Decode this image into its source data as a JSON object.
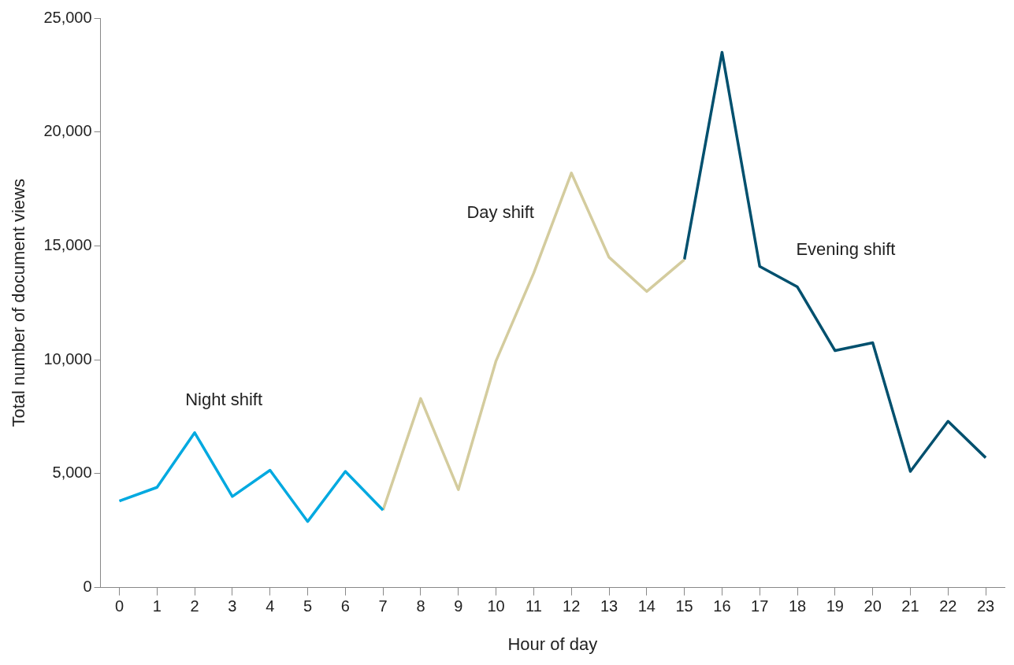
{
  "chart_data": {
    "type": "line",
    "xlabel": "Hour of day",
    "ylabel": "Total number of document views",
    "xlim": [
      -0.5,
      23.5
    ],
    "xticks": [
      0,
      1,
      2,
      3,
      4,
      5,
      6,
      7,
      8,
      9,
      10,
      11,
      12,
      13,
      14,
      15,
      16,
      17,
      18,
      19,
      20,
      21,
      22,
      23
    ],
    "ylim": [
      0,
      25000
    ],
    "yticks": [
      {
        "value": 0,
        "label": "0"
      },
      {
        "value": 5000,
        "label": "5,000"
      },
      {
        "value": 10000,
        "label": "10,000"
      },
      {
        "value": 15000,
        "label": "15,000"
      },
      {
        "value": 20000,
        "label": "20,000"
      },
      {
        "value": 25000,
        "label": "25,000"
      }
    ],
    "grid": false,
    "legend": false,
    "marker": "none",
    "line_style": "solid",
    "series": [
      {
        "name": "Night shift",
        "color": "#00a9e0",
        "x": [
          0,
          1,
          2,
          3,
          4,
          5,
          6,
          7
        ],
        "values": [
          3800,
          4400,
          6800,
          4000,
          5150,
          2900,
          5100,
          3400
        ]
      },
      {
        "name": "Day shift",
        "color": "#d4cc9e",
        "x": [
          7,
          8,
          9,
          10,
          11,
          12,
          13,
          14,
          15
        ],
        "values": [
          3400,
          8300,
          4300,
          9950,
          13800,
          18200,
          14500,
          13000,
          14400
        ]
      },
      {
        "name": "Evening shift",
        "color": "#00506e",
        "x": [
          15,
          16,
          17,
          18,
          19,
          20,
          21,
          22,
          23
        ],
        "values": [
          14400,
          23500,
          14100,
          13200,
          10400,
          10750,
          5100,
          7300,
          5700
        ]
      }
    ]
  }
}
